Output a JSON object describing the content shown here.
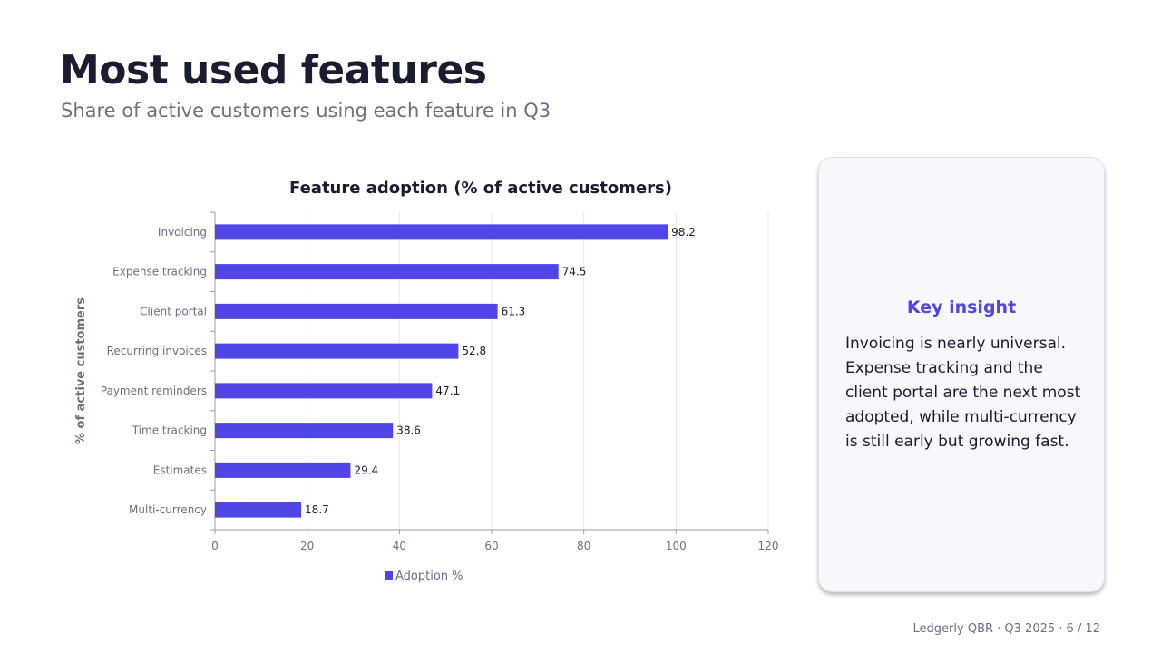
{
  "slide": {
    "title": "Most used features",
    "subtitle": "Share of active customers using each feature in Q3"
  },
  "insight": {
    "title": "Key insight",
    "body": "Invoicing is nearly universal. Expense tracking and the client portal are the next most adopted, while multi-currency is still early but growing fast."
  },
  "footer": {
    "text": "Ledgerly QBR · Q3 2025 · 6 / 12"
  },
  "colors": {
    "bar": "#4f46e5",
    "accent": "#4f46e5",
    "text": "#1b1b32",
    "muted": "#6b7183"
  },
  "chart_data": {
    "type": "bar",
    "orientation": "horizontal",
    "title": "Feature adoption (% of active customers)",
    "xlabel": "",
    "ylabel": "% of active customers",
    "categories": [
      "Invoicing",
      "Expense tracking",
      "Client portal",
      "Recurring invoices",
      "Payment reminders",
      "Time tracking",
      "Estimates",
      "Multi-currency"
    ],
    "series": [
      {
        "name": "Adoption %",
        "values": [
          98.2,
          74.5,
          61.3,
          52.8,
          47.1,
          38.6,
          29.4,
          18.7
        ]
      }
    ],
    "xlim": [
      0,
      120
    ],
    "xticks": [
      0,
      20,
      40,
      60,
      80,
      100,
      120
    ],
    "grid": true,
    "legend": "bottom-center",
    "data_labels": true
  }
}
